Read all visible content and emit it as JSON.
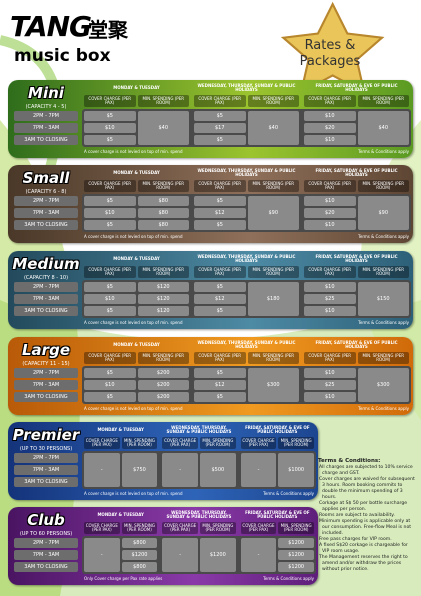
{
  "header": {
    "logo": "TANG",
    "logo_cn": "堂聚",
    "logo_sub": "music box",
    "badge_line1": "Rates &",
    "badge_line2": "Packages"
  },
  "columns": {
    "groups": [
      "MONDAY & TUESDAY",
      "WEDNESDAY, THURSDAY, SUNDAY & PUBLIC HOLIDAYS",
      "FRIDAY, SATURDAY & EVE OF PUBLIC HOLIDAYS"
    ],
    "sub": [
      "COVER CHARGE (PER PAX)",
      "MIN. SPENDING (PER ROOM)"
    ]
  },
  "rooms": [
    {
      "name": "Mini",
      "capacity": "(CAPACITY 4 - 5)",
      "times": [
        "2PM - 7PM",
        "7PM - 3AM",
        "3AM TO CLOSING"
      ],
      "cols": [
        [
          "$5",
          "$10",
          "$5"
        ],
        [
          "$40"
        ],
        [
          "$5",
          "$17",
          "$5"
        ],
        [
          "$40"
        ],
        [
          "$10",
          "$20",
          "$10"
        ],
        [
          "$40"
        ]
      ],
      "note": "A cover charge is not levied on top of min. spend",
      "terms": "Terms & Conditions apply"
    },
    {
      "name": "Small",
      "capacity": "(CAPACITY 6 - 8)",
      "times": [
        "2PM - 7PM",
        "7PM - 3AM",
        "3AM TO CLOSING"
      ],
      "cols": [
        [
          "$5",
          "$10",
          "$5"
        ],
        [
          "$80",
          "$80",
          "$80"
        ],
        [
          "$5",
          "$12",
          "$5"
        ],
        [
          "$90"
        ],
        [
          "$10",
          "$20",
          "$10"
        ],
        [
          "$90"
        ]
      ],
      "note": "A cover charge is not levied on top of min. spend",
      "terms": "Terms & Conditions apply"
    },
    {
      "name": "Medium",
      "capacity": "(CAPACITY 8 - 10)",
      "times": [
        "2PM - 7PM",
        "7PM - 3AM",
        "3AM TO CLOSING"
      ],
      "cols": [
        [
          "$5",
          "$10",
          "$5"
        ],
        [
          "$120",
          "$120",
          "$120"
        ],
        [
          "$5",
          "$12",
          "$5"
        ],
        [
          "$180"
        ],
        [
          "$10",
          "$25",
          "$10"
        ],
        [
          "$150"
        ]
      ],
      "note": "A cover charge is not levied on top of min. spend",
      "terms": "Terms & Conditions apply"
    },
    {
      "name": "Large",
      "capacity": "(CAPACITY 11 - 15)",
      "times": [
        "2PM - 7PM",
        "7PM - 3AM",
        "3AM TO CLOSING"
      ],
      "cols": [
        [
          "$5",
          "$10",
          "$5"
        ],
        [
          "$200",
          "$200",
          "$200"
        ],
        [
          "$5",
          "$12",
          "$5"
        ],
        [
          "$300"
        ],
        [
          "$10",
          "$25",
          "$10"
        ],
        [
          "$300"
        ]
      ],
      "note": "A cover charge is not levied on top of min. spend",
      "terms": "Terms & Conditions apply"
    },
    {
      "name": "Premier",
      "capacity": "(UP TO 30 PERSONS)",
      "times": [
        "2PM - 7PM",
        "7PM - 3AM",
        "3AM TO CLOSING"
      ],
      "cols": [
        [
          "-"
        ],
        [
          "$750"
        ],
        [
          "-"
        ],
        [
          "$500"
        ],
        [
          "-"
        ],
        [
          "$1000"
        ]
      ],
      "note": "A cover charge is not levied on top of min. spend",
      "terms": "Terms & Conditions apply"
    },
    {
      "name": "Club",
      "capacity": "(UP TO 60 PERSONS)",
      "times": [
        "2PM - 7PM",
        "7PM - 3AM",
        "3AM TO CLOSING"
      ],
      "cols": [
        [
          "-"
        ],
        [
          "$800",
          "$1200",
          "$800"
        ],
        [
          "-"
        ],
        [
          "$1200"
        ],
        [
          "-"
        ],
        [
          "$1200",
          "$1200",
          "$1200"
        ]
      ],
      "note": "Only Cover charge per Pax rate applies",
      "terms": "Terms & Conditions apply"
    }
  ],
  "terms": {
    "title": "Terms & Conditions:",
    "items": [
      "All charges are subjected to 10% service charge and GST.",
      "Cover charges are waived for subsequent 3 hours. Room booking commits to double the minimum spending of 3 hours.",
      "Corkage at S$ 50 per bottle surcharge applies per person.",
      "Rooms are subject to availability.",
      "Minimum spending is applicable only at our consumption. Free-flow Meal is not included.",
      "Free pass charges for VIP room.",
      "A fixed S$20 corkage is chargeable for VIP room usage.",
      "The Management reserves the right to amend and/or withdraw the prices without prior notice."
    ]
  }
}
